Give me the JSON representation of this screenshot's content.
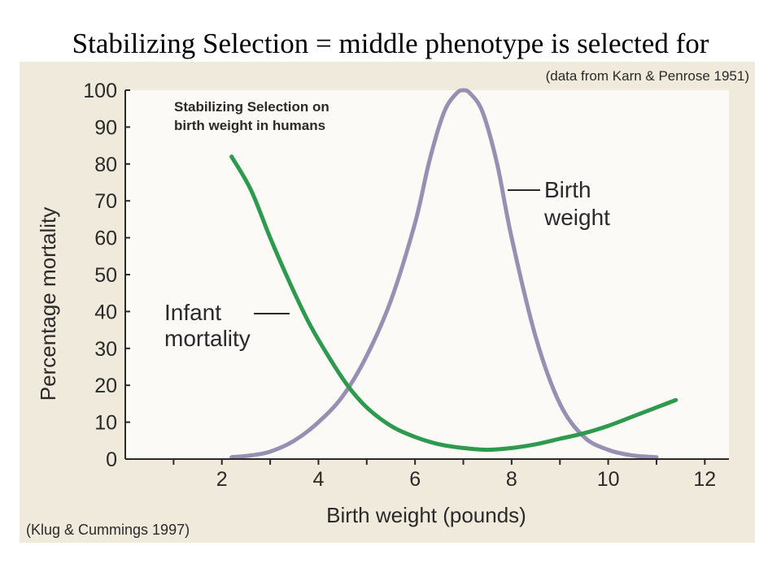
{
  "slide": {
    "title": "Stabilizing Selection = middle phenotype is selected for"
  },
  "figure": {
    "source_top": "(data from Karn & Penrose 1951)",
    "source_bottom": "(Klug & Cummings 1997)",
    "inset_title_line1": "Stabilizing Selection on",
    "inset_title_line2": "birth weight in humans",
    "colors": {
      "panel_background": "#efeadb",
      "plot_background": "#fbfaf7",
      "mortality_curve": "#2e9a4e",
      "birth_weight_curve": "#9790b3",
      "axis": "#2a2a2a",
      "text": "#2a2a2a"
    }
  },
  "chart_data": {
    "type": "line",
    "xlabel": "Birth weight (pounds)",
    "ylabel": "Percentage mortality",
    "xlim": [
      0,
      12.5
    ],
    "ylim": [
      0,
      100
    ],
    "xticks": [
      2,
      4,
      6,
      8,
      10,
      12
    ],
    "xtick_labels": [
      "2",
      "4",
      "6",
      "8",
      "10",
      "12"
    ],
    "yticks": [
      0,
      10,
      20,
      30,
      40,
      50,
      60,
      70,
      80,
      90,
      100
    ],
    "ytick_labels": [
      "0",
      "10",
      "20",
      "30",
      "40",
      "50",
      "60",
      "70",
      "80",
      "90",
      "100"
    ],
    "grid": false,
    "series": [
      {
        "name": "Infant mortality",
        "label_lines": [
          "Infant",
          "mortality"
        ],
        "x": [
          2.2,
          2.6,
          3.0,
          3.4,
          3.8,
          4.2,
          4.6,
          5.0,
          5.5,
          6.0,
          6.5,
          7.0,
          7.5,
          8.0,
          8.5,
          9.0,
          9.5,
          10.0,
          10.5,
          11.0,
          11.4
        ],
        "values": [
          82,
          73,
          60,
          48,
          37,
          28,
          20,
          14,
          9,
          6,
          4,
          3,
          2.5,
          3,
          4,
          5.5,
          7,
          9,
          11.5,
          14,
          16
        ]
      },
      {
        "name": "Birth weight",
        "label_lines": [
          "Birth",
          "weight"
        ],
        "x": [
          2.2,
          2.6,
          3.0,
          3.5,
          4.0,
          4.5,
          5.0,
          5.5,
          6.0,
          6.3,
          6.6,
          6.85,
          7.0,
          7.15,
          7.4,
          7.7,
          8.0,
          8.5,
          9.0,
          9.5,
          10.0,
          10.5,
          11.0
        ],
        "values": [
          0.5,
          1,
          2,
          5,
          10,
          17,
          28,
          43,
          64,
          81,
          94,
          99,
          100,
          99,
          94,
          80,
          60,
          33,
          15,
          6,
          2.5,
          1,
          0.5
        ]
      }
    ]
  }
}
